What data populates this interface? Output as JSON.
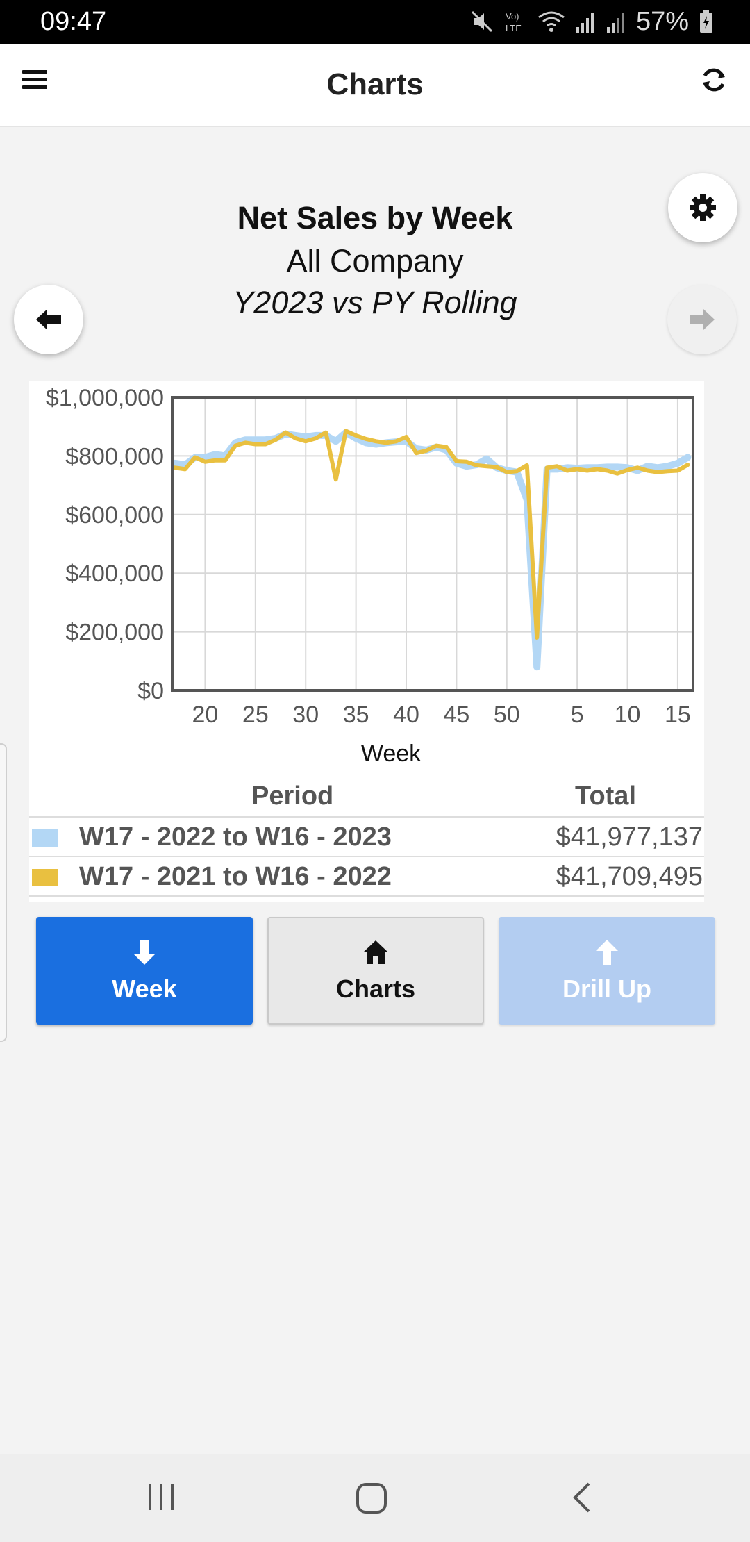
{
  "status": {
    "time": "09:47",
    "battery": "57%"
  },
  "appbar": {
    "title": "Charts",
    "menu_icon": "menu-icon",
    "refresh_icon": "refresh-icon"
  },
  "heading": {
    "title": "Net Sales by Week",
    "subtitle": "All Company",
    "period_label": "Y2023 vs PY Rolling"
  },
  "chart_data": {
    "type": "line",
    "xlabel": "Week",
    "ylabel": "",
    "ylim": [
      0,
      1000000
    ],
    "y_ticks": [
      "$0",
      "$200,000",
      "$400,000",
      "$600,000",
      "$800,000",
      "$1,000,000"
    ],
    "x_ticks": [
      "20",
      "25",
      "30",
      "35",
      "40",
      "45",
      "50",
      "5",
      "10",
      "15"
    ],
    "grid": true,
    "x": [
      "17",
      "18",
      "19",
      "20",
      "21",
      "22",
      "23",
      "24",
      "25",
      "26",
      "27",
      "28",
      "29",
      "30",
      "31",
      "32",
      "33",
      "34",
      "35",
      "36",
      "37",
      "38",
      "39",
      "40",
      "41",
      "42",
      "43",
      "44",
      "45",
      "46",
      "47",
      "48",
      "49",
      "50",
      "51",
      "52",
      "1",
      "2",
      "3",
      "4",
      "5",
      "6",
      "7",
      "8",
      "9",
      "10",
      "11",
      "12",
      "13",
      "14",
      "15",
      "16"
    ],
    "series": [
      {
        "name": "W17 - 2022 to W16 - 2023",
        "color": "#b3d7f5",
        "values": [
          775000,
          770000,
          795000,
          795000,
          805000,
          800000,
          845000,
          855000,
          855000,
          855000,
          860000,
          875000,
          870000,
          865000,
          870000,
          870000,
          850000,
          880000,
          860000,
          845000,
          840000,
          845000,
          848000,
          850000,
          825000,
          820000,
          830000,
          820000,
          775000,
          765000,
          770000,
          790000,
          760000,
          750000,
          745000,
          650000,
          80000,
          755000,
          755000,
          760000,
          758000,
          760000,
          760000,
          762000,
          762000,
          760000,
          750000,
          765000,
          760000,
          765000,
          775000,
          795000
        ]
      },
      {
        "name": "W17 - 2021 to W16 - 2022",
        "color": "#e9c040",
        "values": [
          760000,
          755000,
          795000,
          780000,
          785000,
          785000,
          835000,
          845000,
          840000,
          840000,
          855000,
          880000,
          860000,
          850000,
          860000,
          880000,
          720000,
          885000,
          870000,
          858000,
          850000,
          845000,
          850000,
          865000,
          810000,
          818000,
          835000,
          830000,
          782000,
          780000,
          768000,
          765000,
          762000,
          745000,
          748000,
          768000,
          180000,
          760000,
          765000,
          750000,
          755000,
          750000,
          755000,
          750000,
          740000,
          752000,
          760000,
          750000,
          745000,
          748000,
          750000,
          770000
        ]
      }
    ]
  },
  "legend": {
    "col_period": "Period",
    "col_total": "Total",
    "rows": [
      {
        "period": "W17 - 2022 to W16 - 2023",
        "total": "$41,977,137",
        "color": "#b3d7f5"
      },
      {
        "period": "W17 - 2021 to W16 - 2022",
        "total": "$41,709,495",
        "color": "#e9c040"
      }
    ]
  },
  "buttons": {
    "week": "Week",
    "charts": "Charts",
    "drill_up": "Drill Up"
  }
}
